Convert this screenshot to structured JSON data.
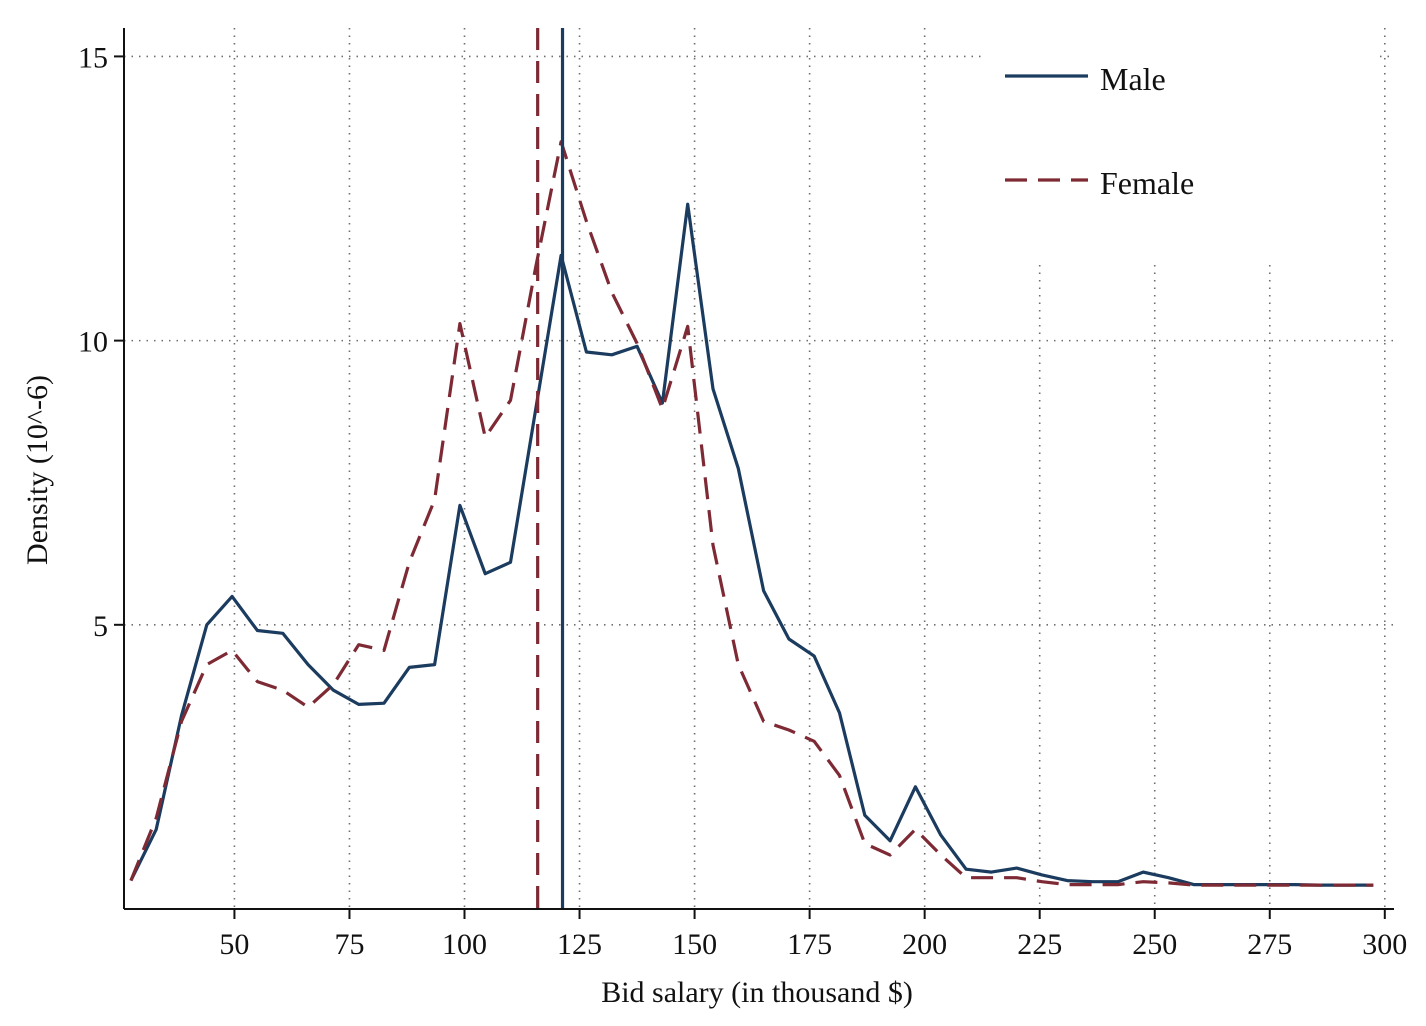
{
  "chart_data": {
    "type": "line",
    "title": "",
    "xlabel": "Bid salary (in thousand $)",
    "ylabel": "Density (10^-6)",
    "xlim": [
      26,
      302
    ],
    "ylim": [
      0,
      15.5
    ],
    "x_ticks": [
      50,
      75,
      100,
      125,
      150,
      175,
      200,
      225,
      250,
      275,
      300
    ],
    "y_ticks": [
      5,
      10,
      15
    ],
    "grid": true,
    "legend_position": "top-right",
    "series": [
      {
        "name": "Male",
        "color": "#1b3b5f",
        "style": "solid",
        "mean": 121.3,
        "x": [
          27.5,
          33,
          38.5,
          44,
          49.5,
          55,
          60.5,
          66,
          71.5,
          77,
          82.5,
          88,
          93.5,
          99,
          104.5,
          110,
          115.5,
          121,
          126.5,
          132,
          137.5,
          143,
          148.5,
          154,
          159.5,
          165,
          170.5,
          176,
          181.5,
          187,
          192.5,
          198,
          203.5,
          209,
          214.5,
          220,
          225.5,
          231,
          236.5,
          242,
          247.5,
          253,
          258.5,
          264,
          269.5,
          275,
          280.5,
          286,
          291.5,
          297.5
        ],
        "values": [
          0.5,
          1.4,
          3.4,
          5.0,
          5.5,
          4.9,
          4.85,
          4.3,
          3.85,
          3.6,
          3.62,
          4.25,
          4.3,
          7.1,
          5.9,
          6.1,
          8.8,
          11.5,
          9.8,
          9.75,
          9.9,
          8.9,
          12.4,
          9.15,
          7.75,
          5.6,
          4.75,
          4.45,
          3.45,
          1.65,
          1.2,
          2.15,
          1.3,
          0.7,
          0.65,
          0.72,
          0.6,
          0.5,
          0.48,
          0.48,
          0.65,
          0.55,
          0.43,
          0.43,
          0.43,
          0.43,
          0.43,
          0.42,
          0.42,
          0.42
        ]
      },
      {
        "name": "Female",
        "color": "#7e2a35",
        "style": "dashed",
        "mean": 115.9,
        "x": [
          27.5,
          33,
          38.5,
          44,
          49.5,
          55,
          60.5,
          66,
          71.5,
          77,
          82.5,
          88,
          93.5,
          99,
          104.5,
          110,
          115.5,
          121,
          126.5,
          132,
          137.5,
          143,
          148.5,
          154,
          159.5,
          165,
          170.5,
          176,
          181.5,
          187,
          192.5,
          198,
          203.5,
          209,
          214.5,
          220,
          225.5,
          231,
          236.5,
          242,
          247.5,
          253,
          258.5,
          264,
          269.5,
          275,
          280.5,
          286,
          291.5,
          297.5
        ],
        "values": [
          0.5,
          1.6,
          3.3,
          4.3,
          4.55,
          4.0,
          3.85,
          3.55,
          3.95,
          4.65,
          4.55,
          6.1,
          7.2,
          10.3,
          8.3,
          8.95,
          11.3,
          13.5,
          12.1,
          10.85,
          9.95,
          8.8,
          10.25,
          6.4,
          4.3,
          3.3,
          3.15,
          2.95,
          2.35,
          1.15,
          0.95,
          1.4,
          0.95,
          0.55,
          0.55,
          0.55,
          0.48,
          0.43,
          0.43,
          0.43,
          0.48,
          0.46,
          0.42,
          0.42,
          0.42,
          0.42,
          0.42,
          0.42,
          0.42,
          0.42
        ]
      }
    ]
  }
}
